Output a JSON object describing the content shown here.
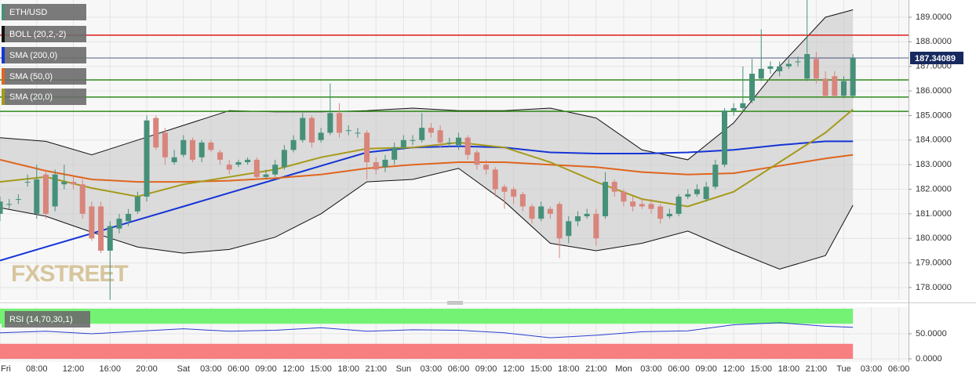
{
  "chart_data": [
    {
      "type": "candlestick",
      "title": "ETH/USD",
      "watermark": "FXSTREET",
      "x": [
        4,
        5,
        6,
        7,
        8,
        9,
        10,
        11,
        12,
        13,
        14,
        15,
        16,
        17,
        18,
        19,
        20,
        21,
        22,
        23,
        24,
        25,
        26,
        27,
        28,
        29,
        30,
        31,
        32,
        33,
        34,
        35,
        36,
        37,
        38,
        39,
        40,
        41,
        42,
        43,
        44,
        45,
        46,
        47,
        48,
        49,
        50,
        51,
        52,
        53,
        54,
        55,
        56,
        57,
        58,
        59,
        60,
        61,
        62,
        63,
        64,
        65,
        66,
        67,
        68,
        69,
        70,
        71,
        72,
        73,
        74,
        75,
        76,
        77,
        78,
        79,
        80,
        81,
        82,
        83,
        84,
        85,
        86,
        87,
        88,
        89,
        90,
        91,
        92,
        93,
        94,
        95,
        96,
        97
      ],
      "open": [
        181.0,
        181.4,
        181.6,
        182.3,
        181.0,
        182.6,
        181.3,
        182.2,
        182.3,
        182.2,
        181.3,
        181.3,
        179.5,
        180.4,
        180.7,
        181.1,
        181.7,
        184.9,
        184.3,
        183.1,
        183.4,
        184.0,
        183.3,
        183.9,
        183.5,
        183.0,
        183.0,
        183.1,
        183.2,
        182.5,
        182.6,
        182.9,
        183.6,
        184.0,
        184.9,
        184.0,
        184.3,
        185.1,
        184.4,
        184.3,
        184.3,
        183.1,
        182.9,
        183.2,
        183.7,
        184.0,
        184.0,
        184.5,
        184.4,
        183.9,
        183.8,
        184.1,
        183.5,
        183.0,
        182.8,
        182.1,
        182.0,
        181.8,
        181.3,
        180.8,
        181.2,
        181.4,
        180.1,
        180.7,
        180.9,
        181.0,
        180.9,
        182.3,
        181.9,
        181.5,
        181.4,
        181.4,
        181.3,
        180.9,
        181.0,
        181.7,
        181.8,
        181.6,
        182.1,
        183.0,
        185.2,
        185.3,
        185.6,
        186.5,
        186.9,
        186.8,
        187.0,
        187.2,
        186.5,
        187.3,
        186.5,
        186.6,
        185.8,
        185.8
      ],
      "high": [
        181.7,
        181.6,
        181.8,
        182.6,
        183.0,
        182.8,
        182.8,
        183.0,
        182.5,
        182.4,
        181.5,
        181.5,
        180.7,
        181.0,
        181.2,
        181.9,
        185.0,
        185.0,
        184.5,
        183.6,
        184.2,
        184.1,
        184.0,
        184.0,
        183.6,
        183.2,
        183.2,
        183.3,
        183.3,
        182.8,
        183.2,
        183.8,
        184.2,
        185.1,
        185.0,
        184.5,
        186.3,
        185.5,
        184.6,
        184.5,
        184.4,
        183.3,
        183.4,
        183.9,
        184.2,
        184.2,
        185.1,
        184.7,
        184.6,
        184.1,
        184.3,
        184.2,
        183.6,
        183.2,
        182.9,
        182.2,
        182.1,
        181.9,
        181.4,
        181.5,
        181.3,
        181.5,
        180.9,
        181.1,
        181.2,
        181.2,
        182.7,
        182.4,
        182.0,
        181.7,
        181.6,
        181.6,
        181.4,
        181.2,
        181.8,
        182.0,
        182.2,
        182.3,
        183.2,
        185.3,
        185.5,
        187.0,
        187.3,
        188.5,
        187.2,
        187.2,
        187.3,
        187.4,
        189.7,
        187.6,
        186.8,
        186.8,
        186.6,
        187.5
      ],
      "low": [
        180.7,
        181.2,
        181.4,
        182.1,
        180.8,
        180.8,
        181.1,
        182.0,
        182.0,
        180.8,
        179.9,
        179.4,
        177.5,
        180.2,
        180.5,
        181.0,
        181.5,
        183.6,
        183.0,
        183.0,
        183.3,
        183.1,
        183.1,
        183.5,
        183.0,
        182.6,
        182.9,
        183.0,
        182.4,
        182.4,
        182.5,
        182.8,
        183.5,
        183.9,
        183.7,
        183.9,
        184.2,
        184.1,
        184.2,
        184.1,
        182.4,
        182.6,
        182.7,
        183.0,
        183.6,
        183.8,
        183.9,
        184.1,
        183.7,
        183.7,
        183.6,
        183.2,
        182.8,
        182.6,
        181.7,
        181.2,
        181.4,
        181.1,
        180.6,
        180.7,
        180.8,
        179.2,
        179.8,
        180.5,
        180.8,
        179.7,
        180.8,
        181.7,
        181.3,
        181.1,
        181.2,
        181.0,
        180.6,
        180.8,
        180.9,
        181.6,
        181.7,
        181.5,
        182.0,
        182.9,
        185.0,
        185.2,
        185.5,
        186.4,
        186.7,
        186.6,
        186.9,
        187.0,
        186.4,
        186.3,
        185.7,
        185.7,
        185.7,
        185.7
      ],
      "close": [
        181.5,
        181.4,
        181.6,
        182.3,
        182.4,
        181.0,
        182.6,
        182.3,
        182.2,
        181.0,
        180.0,
        179.5,
        180.5,
        180.8,
        181.0,
        181.7,
        184.8,
        183.7,
        183.3,
        183.3,
        184.0,
        183.2,
        183.9,
        183.6,
        183.2,
        182.8,
        183.1,
        183.2,
        182.5,
        182.6,
        183.0,
        183.6,
        184.0,
        184.9,
        183.9,
        184.3,
        185.1,
        184.3,
        184.4,
        184.3,
        183.1,
        182.8,
        183.2,
        183.7,
        184.0,
        184.0,
        184.5,
        184.3,
        183.9,
        183.9,
        184.1,
        183.4,
        183.0,
        182.8,
        182.0,
        181.9,
        181.7,
        181.3,
        180.8,
        181.3,
        181.0,
        180.0,
        180.7,
        180.9,
        181.0,
        180.0,
        182.3,
        181.9,
        181.5,
        181.3,
        181.3,
        181.2,
        180.8,
        181.0,
        181.7,
        181.8,
        182.0,
        182.1,
        183.0,
        185.2,
        185.3,
        185.5,
        186.7,
        186.9,
        187.0,
        187.0,
        187.1,
        187.2,
        187.5,
        186.5,
        185.8,
        185.8,
        186.4,
        187.34
      ],
      "up_color": "#46907a",
      "down_color": "#d8857c",
      "indicators": [
        {
          "name": "BOLL (20,2,-2)",
          "color": "#111111",
          "fill": "#c4c4c4",
          "x": [
            4,
            9,
            14,
            19,
            24,
            29,
            34,
            39,
            44,
            49,
            54,
            59,
            64,
            69,
            74,
            79,
            84,
            89,
            94,
            97
          ],
          "upper": [
            184.1,
            183.95,
            183.4,
            184.0,
            184.6,
            185.2,
            185.15,
            185.15,
            185.2,
            185.3,
            185.2,
            185.2,
            185.3,
            184.9,
            183.6,
            183.2,
            184.7,
            187.0,
            189.0,
            189.3
          ],
          "lower": [
            181.25,
            180.9,
            180.25,
            179.65,
            179.4,
            179.55,
            180.05,
            181.0,
            182.3,
            182.4,
            182.85,
            181.5,
            179.8,
            179.5,
            179.8,
            180.3,
            179.5,
            178.75,
            179.3,
            181.35
          ]
        },
        {
          "name": "SMA (200,0)",
          "color": "#1534d6",
          "x": [
            4,
            9,
            14,
            19,
            24,
            29,
            34,
            39,
            44,
            49,
            54,
            59,
            64,
            69,
            74,
            79,
            84,
            89,
            94,
            97
          ],
          "values": [
            179.1,
            179.65,
            180.2,
            180.75,
            181.3,
            181.85,
            182.4,
            182.95,
            183.5,
            183.7,
            183.75,
            183.7,
            183.5,
            183.45,
            183.45,
            183.5,
            183.6,
            183.8,
            183.95,
            183.95
          ]
        },
        {
          "name": "SMA (50,0)",
          "color": "#e0651e",
          "x": [
            4,
            9,
            14,
            19,
            24,
            29,
            34,
            39,
            44,
            49,
            54,
            59,
            64,
            69,
            74,
            79,
            84,
            89,
            94,
            97
          ],
          "values": [
            183.2,
            182.75,
            182.4,
            182.3,
            182.3,
            182.35,
            182.45,
            182.6,
            182.85,
            183.0,
            183.1,
            183.1,
            183.0,
            182.9,
            182.7,
            182.6,
            182.65,
            182.95,
            183.25,
            183.4
          ]
        },
        {
          "name": "SMA (20,0)",
          "color": "#a59a1a",
          "x": [
            4,
            9,
            14,
            19,
            24,
            29,
            34,
            39,
            44,
            49,
            54,
            59,
            64,
            69,
            74,
            79,
            84,
            89,
            94,
            97
          ],
          "values": [
            182.3,
            182.5,
            182.05,
            181.7,
            182.2,
            182.5,
            182.8,
            183.3,
            183.65,
            183.7,
            183.9,
            183.7,
            183.1,
            182.3,
            181.6,
            181.3,
            181.9,
            183.1,
            184.3,
            185.25
          ]
        }
      ],
      "levels": [
        {
          "value": 188.27,
          "color": "#e01b1b"
        },
        {
          "value": 186.45,
          "color": "#2f8a1c"
        },
        {
          "value": 185.75,
          "color": "#2f8a1c"
        },
        {
          "value": 185.17,
          "color": "#2f8a1c"
        }
      ],
      "last_price": {
        "value": 187.34089,
        "label": "187.34089",
        "color": "#17295e"
      },
      "xlim": [
        4,
        103.06
      ],
      "ylim": [
        177.49,
        189.7
      ],
      "yticks": [
        {
          "value": 189,
          "label": "189.0000"
        },
        {
          "value": 188,
          "label": "188.0000"
        },
        {
          "value": 187,
          "label": "187.0000"
        },
        {
          "value": 186,
          "label": "186.0000"
        },
        {
          "value": 185,
          "label": "185.0000"
        },
        {
          "value": 184,
          "label": "184.0000"
        },
        {
          "value": 183,
          "label": "183.0000"
        },
        {
          "value": 182,
          "label": "182.0000"
        },
        {
          "value": 181,
          "label": "181.0000"
        },
        {
          "value": 180,
          "label": "180.0000"
        },
        {
          "value": 179,
          "label": "179.0000"
        },
        {
          "value": 178,
          "label": "178.0000"
        }
      ],
      "grid": true
    },
    {
      "type": "line",
      "title": "RSI (14,70,30,1)",
      "color": "#2a3fd0",
      "x": [
        4,
        9,
        14,
        19,
        24,
        29,
        34,
        39,
        44,
        49,
        54,
        59,
        64,
        69,
        74,
        79,
        84,
        89,
        94,
        97
      ],
      "values": [
        52,
        55,
        50,
        55,
        60,
        55,
        57,
        62,
        55,
        58,
        57,
        52,
        42,
        47,
        54,
        56,
        68,
        72,
        65,
        63
      ],
      "overbought": 70,
      "oversold": 30,
      "overbought_color": "#74f274",
      "oversold_color": "#f77f7f",
      "xlim": [
        4,
        103.06
      ],
      "ylim": [
        0,
        100
      ],
      "yticks": [
        {
          "value": 50,
          "label": "50.0000"
        },
        {
          "value": 0,
          "label": "0.0000"
        }
      ],
      "xticks": [
        {
          "value": 4,
          "label": "Fri"
        },
        {
          "value": 8,
          "label": "08:00"
        },
        {
          "value": 12,
          "label": "12:00"
        },
        {
          "value": 16,
          "label": "16:00"
        },
        {
          "value": 20,
          "label": "20:00"
        },
        {
          "value": 24,
          "label": "Sat"
        },
        {
          "value": 27,
          "label": "03:00"
        },
        {
          "value": 30,
          "label": "06:00"
        },
        {
          "value": 33,
          "label": "09:00"
        },
        {
          "value": 36,
          "label": "12:00"
        },
        {
          "value": 39,
          "label": "15:00"
        },
        {
          "value": 42,
          "label": "18:00"
        },
        {
          "value": 45,
          "label": "21:00"
        },
        {
          "value": 48,
          "label": "Sun"
        },
        {
          "value": 51,
          "label": "03:00"
        },
        {
          "value": 54,
          "label": "06:00"
        },
        {
          "value": 57,
          "label": "09:00"
        },
        {
          "value": 60,
          "label": "12:00"
        },
        {
          "value": 63,
          "label": "15:00"
        },
        {
          "value": 66,
          "label": "18:00"
        },
        {
          "value": 69,
          "label": "21:00"
        },
        {
          "value": 72,
          "label": "Mon"
        },
        {
          "value": 75,
          "label": "03:00"
        },
        {
          "value": 78,
          "label": "06:00"
        },
        {
          "value": 81,
          "label": "09:00"
        },
        {
          "value": 84,
          "label": "12:00"
        },
        {
          "value": 87,
          "label": "15:00"
        },
        {
          "value": 90,
          "label": "18:00"
        },
        {
          "value": 93,
          "label": "21:00"
        },
        {
          "value": 96,
          "label": "Tue"
        },
        {
          "value": 99,
          "label": "03:00"
        },
        {
          "value": 102,
          "label": "06:00"
        }
      ],
      "grid": true
    }
  ]
}
